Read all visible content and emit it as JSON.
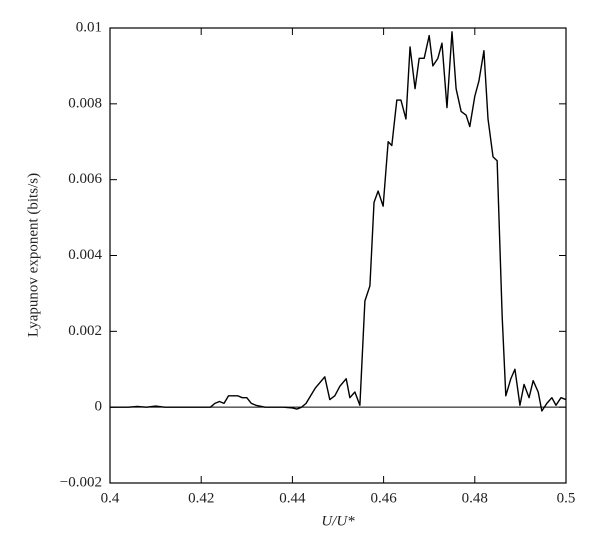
{
  "chart_data": {
    "type": "line",
    "x_label": "U/U*",
    "y_label": "Lyapunov exponent (bits/s)",
    "x": [
      0.4,
      0.402,
      0.404,
      0.406,
      0.408,
      0.41,
      0.412,
      0.414,
      0.416,
      0.418,
      0.42,
      0.422,
      0.423,
      0.424,
      0.425,
      0.426,
      0.427,
      0.428,
      0.429,
      0.43,
      0.431,
      0.432,
      0.434,
      0.436,
      0.438,
      0.44,
      0.441,
      0.442,
      0.443,
      0.444,
      0.445,
      0.4471,
      0.4482,
      0.4493,
      0.4504,
      0.4518,
      0.4526,
      0.4537,
      0.4548,
      0.4559,
      0.457,
      0.4579,
      0.4588,
      0.4599,
      0.461,
      0.4618,
      0.4629,
      0.4638,
      0.4649,
      0.4658,
      0.4669,
      0.4678,
      0.4689,
      0.47,
      0.4708,
      0.4719,
      0.4728,
      0.4739,
      0.475,
      0.4759,
      0.477,
      0.4781,
      0.4789,
      0.48,
      0.4809,
      0.482,
      0.4829,
      0.484,
      0.4849,
      0.486,
      0.4868,
      0.4879,
      0.4888,
      0.4899,
      0.4908,
      0.4919,
      0.4928,
      0.4939,
      0.4947,
      0.4958,
      0.4969,
      0.4978,
      0.4989,
      0.5
    ],
    "series": [
      {
        "color": "#000000",
        "values": [
          0,
          0,
          0,
          2e-05,
          0,
          3e-05,
          0,
          0,
          0,
          0,
          0,
          0,
          0.0001,
          0.00015,
          0.0001,
          0.0003,
          0.0003,
          0.0003,
          0.00025,
          0.00025,
          0.0001,
          5e-05,
          0,
          0,
          0,
          -2e-05,
          -5e-05,
          0,
          0.0001,
          0.0003,
          0.0005,
          0.0008,
          0.0002,
          0.0003,
          0.00055,
          0.00075,
          0.00025,
          0.0004,
          5e-05,
          0.0028,
          0.0032,
          0.0054,
          0.0057,
          0.0053,
          0.007,
          0.0069,
          0.0081,
          0.0081,
          0.0076,
          0.0095,
          0.0084,
          0.0092,
          0.0092,
          0.0098,
          0.009,
          0.0092,
          0.0096,
          0.0079,
          0.0099,
          0.0084,
          0.0078,
          0.0077,
          0.0074,
          0.0082,
          0.0086,
          0.0094,
          0.0076,
          0.0066,
          0.0065,
          0.0024,
          0.0003,
          0.00075,
          0.001,
          5e-05,
          0.0006,
          0.00025,
          0.0007,
          0.0004,
          -0.0001,
          0.0001,
          0.00025,
          5e-05,
          0.00025,
          0.0002
        ]
      }
    ],
    "xlim": [
      0.4,
      0.5
    ],
    "xticks": [
      0.4,
      0.42,
      0.44,
      0.46,
      0.48,
      0.5
    ],
    "ylim": [
      -0.002,
      0.01
    ],
    "yticks": [
      {
        "value": -0.002,
        "label": "−0.002"
      },
      0,
      0.002,
      0.004,
      0.006,
      0.008,
      0.01
    ],
    "grid": false
  }
}
